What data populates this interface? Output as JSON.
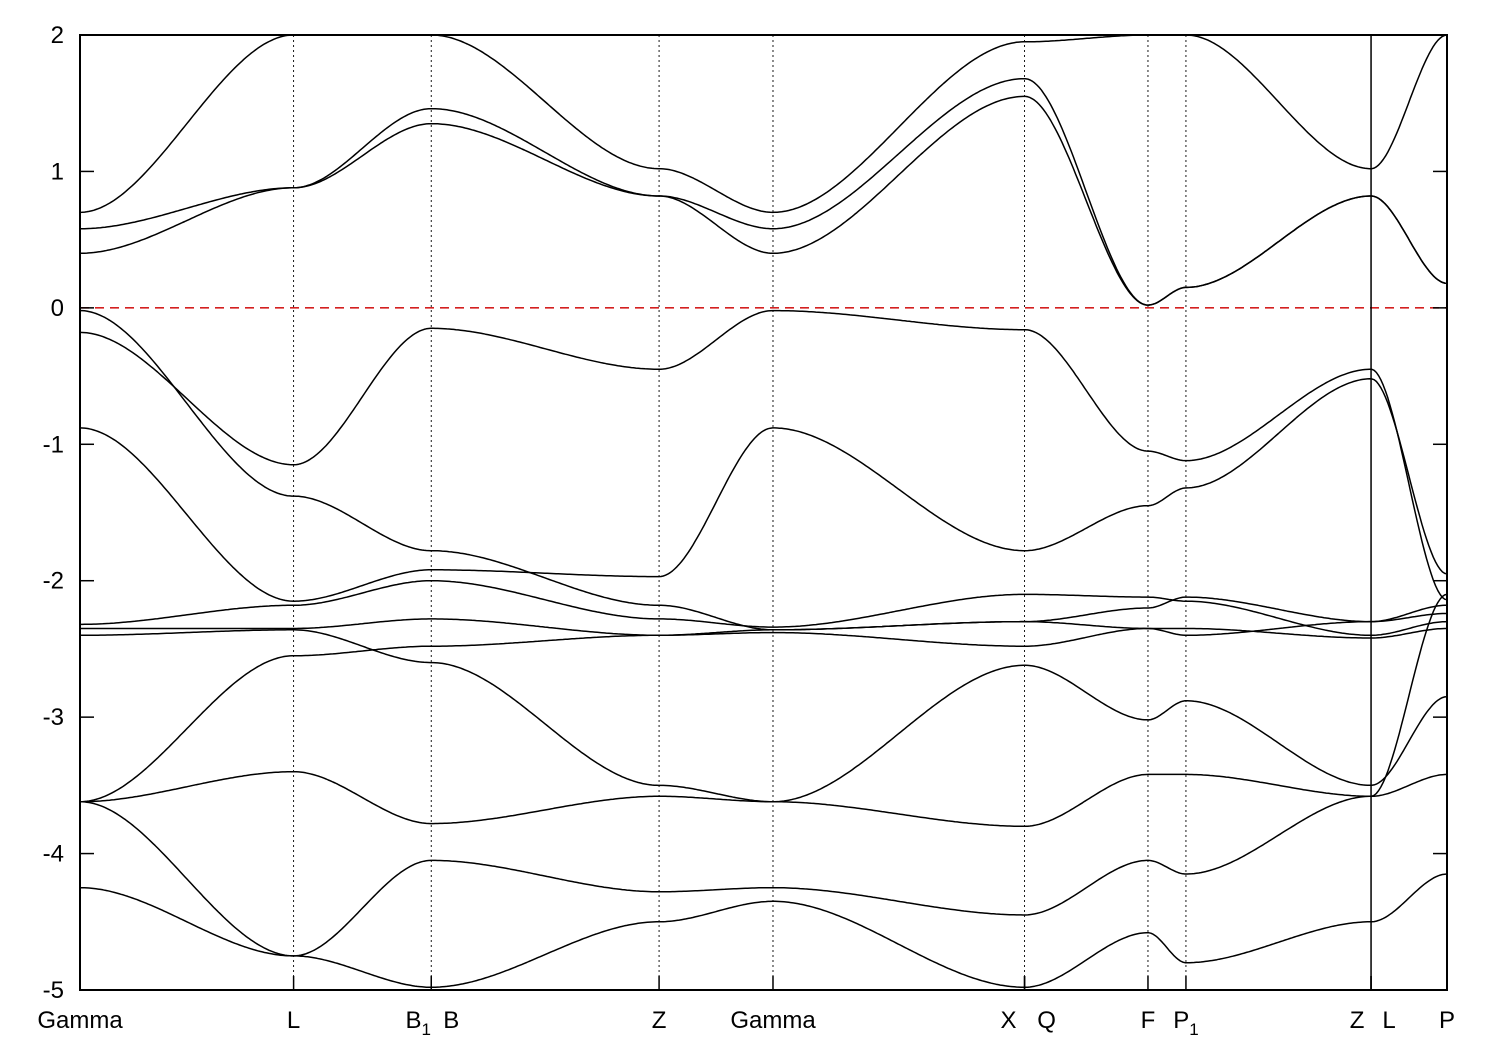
{
  "chart_data": {
    "type": "line",
    "title": "",
    "xlabel": "",
    "ylabel": "",
    "ylim": [
      -5,
      2
    ],
    "yticks": [
      -5,
      -4,
      -3,
      -2,
      -1,
      0,
      1,
      2
    ],
    "xlim": [
      0,
      28.8
    ],
    "grid": false,
    "legend": "none",
    "kpoints": [
      {
        "label": "Gamma",
        "sub": "",
        "x": 0
      },
      {
        "label": "L",
        "sub": "",
        "x": 4.5
      },
      {
        "label": "B",
        "sub": "1",
        "x": 7.4
      },
      {
        "label": "B",
        "sub": "",
        "x": 7.4
      },
      {
        "label": "Z",
        "sub": "",
        "x": 12.2
      },
      {
        "label": "Gamma",
        "sub": "",
        "x": 14.6
      },
      {
        "label": "X",
        "sub": "",
        "x": 19.9
      },
      {
        "label": "Q",
        "sub": "",
        "x": 19.9
      },
      {
        "label": "F",
        "sub": "",
        "x": 22.5
      },
      {
        "label": "P",
        "sub": "1",
        "x": 23.3
      },
      {
        "label": "Z",
        "sub": "",
        "x": 27.2
      },
      {
        "label": "L",
        "sub": "",
        "x": 27.2
      },
      {
        "label": "P",
        "sub": "",
        "x": 28.8
      }
    ],
    "kpath_x": [
      0,
      4.5,
      7.4,
      12.2,
      14.6,
      19.9,
      22.5,
      23.3,
      27.2,
      28.8
    ],
    "fermi_level": 0,
    "colors": {
      "bands": "#000000",
      "fermi": "#d42020"
    },
    "series": [
      {
        "values": [
          -0.02,
          -1.38,
          -1.78,
          -2.18,
          -2.36,
          -2.3,
          -2.2,
          -2.12,
          -2.3,
          -2.24
        ]
      },
      {
        "values": [
          -0.18,
          -1.15,
          -0.15,
          -0.45,
          -0.02,
          -0.16,
          -1.05,
          -1.12,
          -0.45,
          -2.14
        ]
      },
      {
        "values": [
          -0.88,
          -2.15,
          -1.92,
          -1.97,
          -0.88,
          -1.78,
          -1.45,
          -1.32,
          -0.52,
          -1.95
        ]
      },
      {
        "values": [
          -2.32,
          -2.18,
          -2.0,
          -2.28,
          -2.34,
          -2.1,
          -2.12,
          -2.15,
          -2.4,
          -2.3
        ]
      },
      {
        "values": [
          -2.35,
          -2.35,
          -2.28,
          -2.4,
          -2.38,
          -2.48,
          -2.35,
          -2.35,
          -2.42,
          -2.35
        ]
      },
      {
        "values": [
          -2.4,
          -2.36,
          -2.6,
          -3.5,
          -3.62,
          -2.62,
          -3.02,
          -2.88,
          -3.5,
          -2.85
        ]
      },
      {
        "values": [
          -3.62,
          -2.55,
          -2.48,
          -2.4,
          -2.36,
          -2.3,
          -2.35,
          -2.4,
          -2.3,
          -2.18
        ]
      },
      {
        "values": [
          -3.62,
          -3.4,
          -3.78,
          -3.58,
          -3.62,
          -3.8,
          -3.42,
          -3.42,
          -3.58,
          -3.42
        ]
      },
      {
        "values": [
          -3.62,
          -4.75,
          -4.05,
          -4.28,
          -4.25,
          -4.45,
          -4.05,
          -4.15,
          -3.58,
          -2.1
        ]
      },
      {
        "values": [
          -4.25,
          -4.75,
          -4.98,
          -4.5,
          -4.35,
          -4.98,
          -4.58,
          -4.8,
          -4.5,
          -4.15
        ]
      },
      {
        "values": [
          0.4,
          0.88,
          1.35,
          0.82,
          0.4,
          1.55,
          0.02,
          0.15,
          0.82,
          0.18
        ]
      },
      {
        "values": [
          0.58,
          0.88,
          1.46,
          0.82,
          0.58,
          1.68,
          0.02,
          0.15,
          0.82,
          0.18
        ]
      },
      {
        "values": [
          0.7,
          2.0,
          2.0,
          1.02,
          0.7,
          1.95,
          2.0,
          2.0,
          1.02,
          2.0
        ]
      }
    ]
  }
}
